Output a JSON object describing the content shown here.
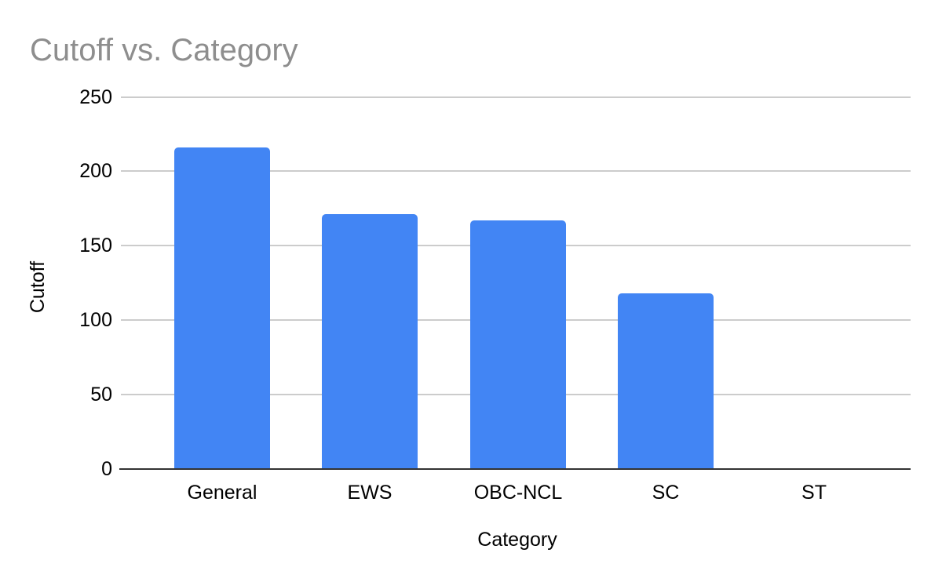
{
  "page": {
    "background_color": "#ffffff"
  },
  "chart_data": {
    "type": "bar",
    "title": "Cutoff vs. Category",
    "xlabel": "Category",
    "ylabel": "Cutoff",
    "categories": [
      "General",
      "EWS",
      "OBC-NCL",
      "SC",
      "ST"
    ],
    "values": [
      216,
      171,
      167,
      118,
      0
    ],
    "yticks": [
      0,
      50,
      100,
      150,
      200,
      250
    ],
    "ylim": [
      0,
      250
    ],
    "grid": true,
    "legend_position": "none",
    "colors": {
      "bar": "#4285f4",
      "title_text": "#8e8e8e",
      "axis_text": "#000000",
      "gridline": "#cccccc",
      "axis_baseline": "#333333"
    }
  }
}
